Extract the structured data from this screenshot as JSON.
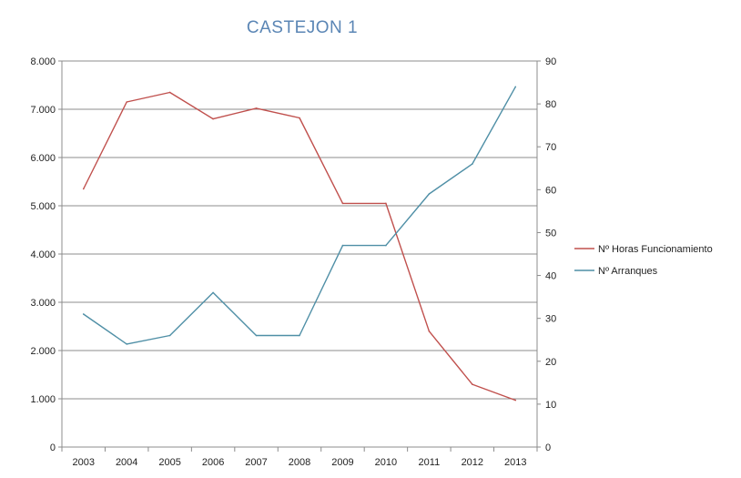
{
  "chart_data": {
    "type": "line",
    "title": "CASTEJON 1",
    "categories": [
      "2003",
      "2004",
      "2005",
      "2006",
      "2007",
      "2008",
      "2009",
      "2010",
      "2011",
      "2012",
      "2013"
    ],
    "y_left": {
      "range": [
        0,
        8000
      ],
      "ticks": [
        0,
        1000,
        2000,
        3000,
        4000,
        5000,
        6000,
        7000,
        8000
      ],
      "tick_labels": [
        "0",
        "1.000",
        "2.000",
        "3.000",
        "4.000",
        "5.000",
        "6.000",
        "7.000",
        "8.000"
      ]
    },
    "y_right": {
      "range": [
        0,
        90
      ],
      "ticks": [
        0,
        10,
        20,
        30,
        40,
        50,
        60,
        70,
        80,
        90
      ],
      "tick_labels": [
        "0",
        "10",
        "20",
        "30",
        "40",
        "50",
        "60",
        "70",
        "80",
        "90"
      ]
    },
    "grid": true,
    "legend_position": "right",
    "series": [
      {
        "name": "Nº Horas Funcionamiento",
        "axis": "left",
        "color": "#c0504d",
        "values": [
          5350,
          7150,
          7350,
          6800,
          7020,
          6820,
          5050,
          5050,
          2400,
          1300,
          970
        ]
      },
      {
        "name": "Nº Arranques",
        "axis": "right",
        "color": "#4f8fa6",
        "values": [
          31,
          24,
          26,
          36,
          26,
          26,
          47,
          47,
          59,
          66,
          84
        ]
      }
    ]
  }
}
